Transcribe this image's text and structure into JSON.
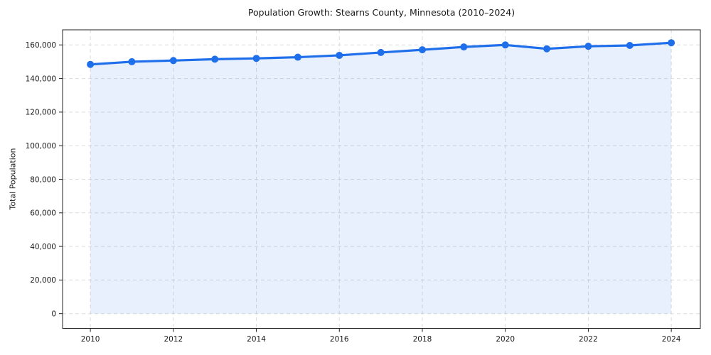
{
  "chart_data": {
    "type": "area",
    "title": "Population Growth: Stearns County, Minnesota (2010–2024)",
    "xlabel": "",
    "ylabel": "Total Population",
    "x": [
      2010,
      2011,
      2012,
      2013,
      2014,
      2015,
      2016,
      2017,
      2018,
      2019,
      2020,
      2021,
      2022,
      2023,
      2024
    ],
    "series": [
      {
        "name": "Total Population",
        "values": [
          148400,
          150000,
          150700,
          151500,
          152000,
          152700,
          153800,
          155500,
          157100,
          158800,
          160000,
          157700,
          159200,
          159700,
          161300
        ]
      }
    ],
    "xticks": [
      2010,
      2012,
      2014,
      2016,
      2018,
      2020,
      2022,
      2024
    ],
    "yticks": [
      0,
      20000,
      40000,
      60000,
      80000,
      100000,
      120000,
      140000,
      160000
    ],
    "xlim": [
      2009.33,
      2024.7
    ],
    "ylim": [
      -8800,
      169000
    ],
    "fill_baseline": 0,
    "grid": true,
    "grid_style": "dashed",
    "legend": false,
    "marker": "circle",
    "colors": {
      "line": "#1f6feb",
      "fill": "#1f6feb",
      "fill_opacity": 0.1,
      "grid": "#dcdcdc",
      "spine": "#222222",
      "text": "#1a1a1a",
      "background": "#ffffff"
    }
  }
}
